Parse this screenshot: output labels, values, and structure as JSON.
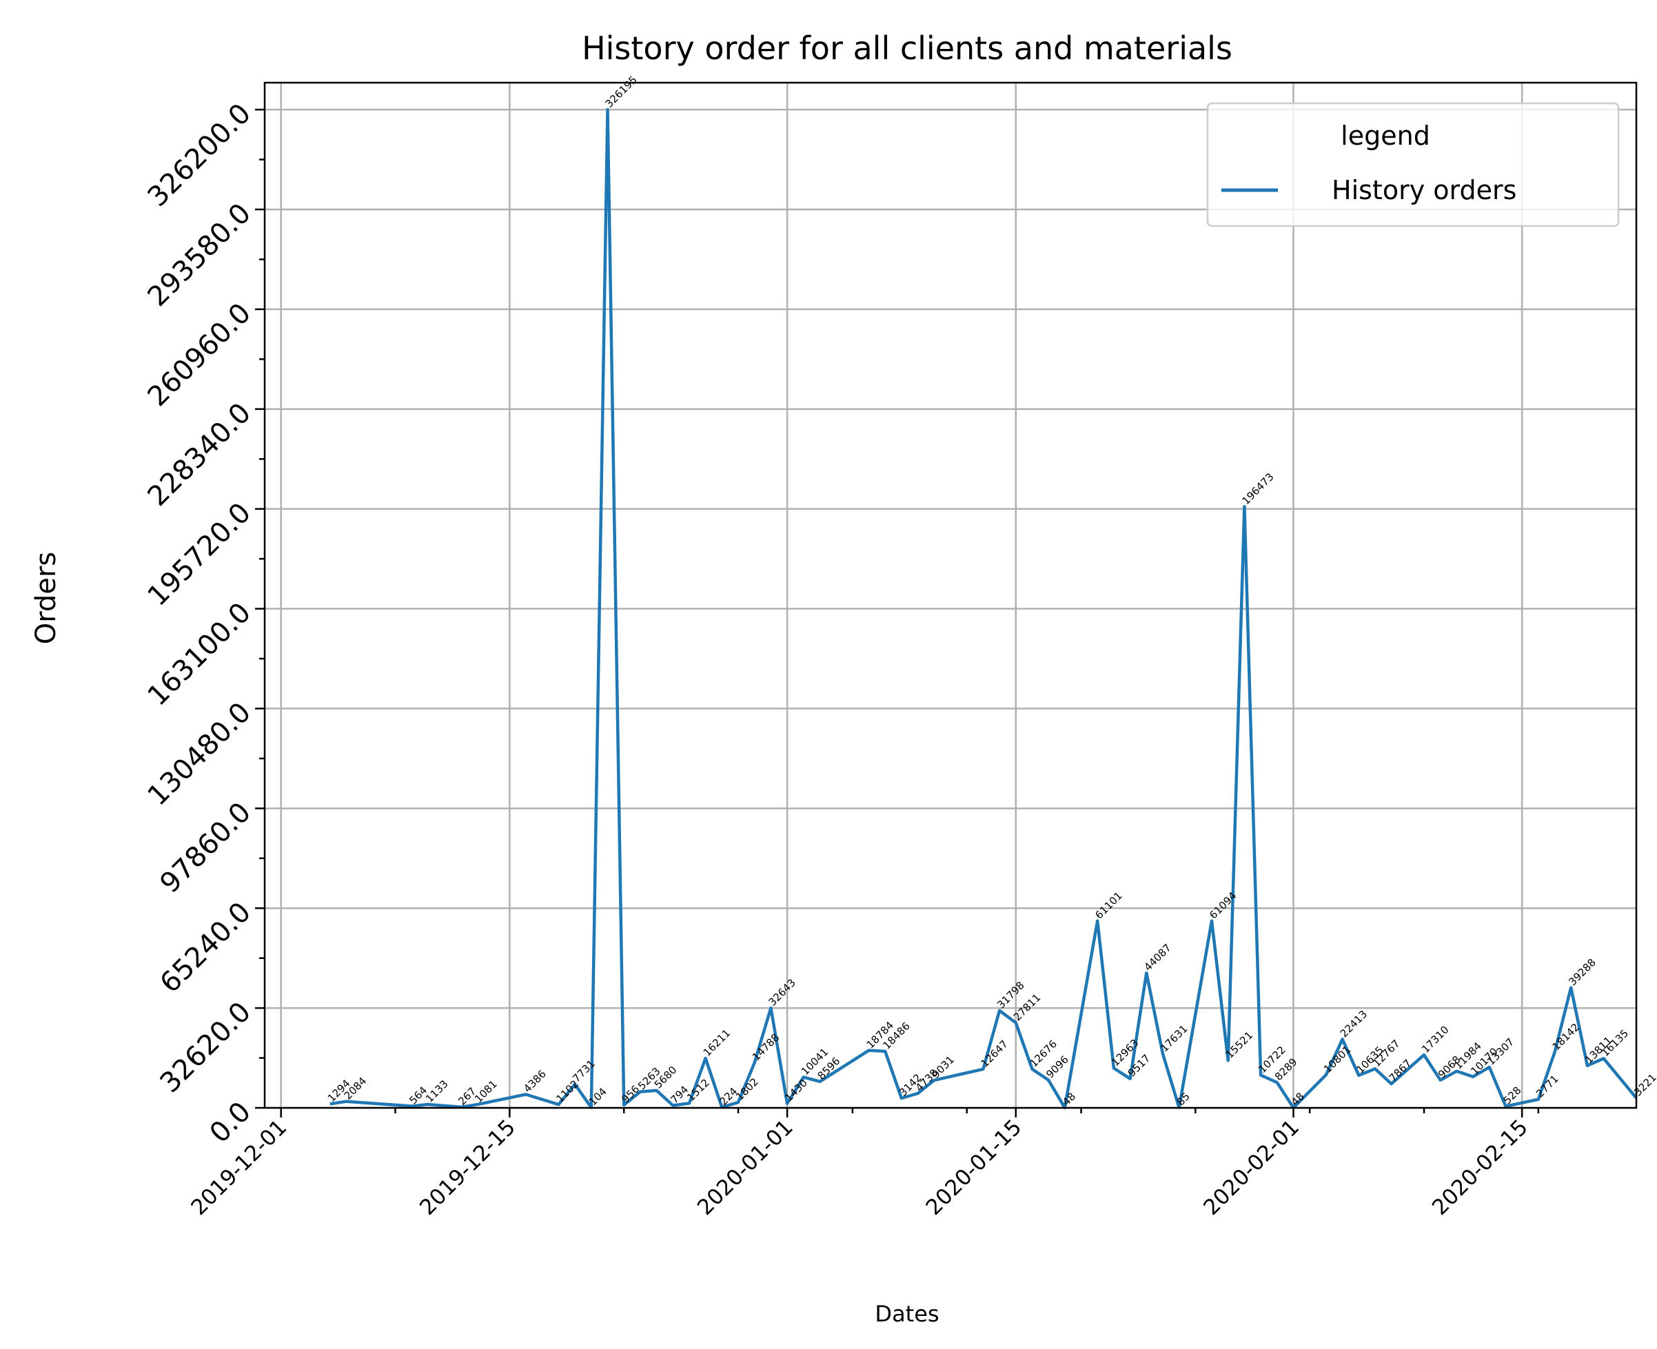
{
  "chart_data": {
    "type": "line",
    "title": "History order for all clients and materials",
    "xlabel": "Dates",
    "ylabel": "Orders",
    "grid": true,
    "legend": {
      "title": "legend",
      "placement": "upper right",
      "entries": [
        "History orders"
      ]
    },
    "colors": {
      "series": "#1f77b4",
      "grid": "#b0b0b0"
    },
    "xlim": [
      "2019-11-30",
      "2020-02-22"
    ],
    "ylim": [
      0,
      335000
    ],
    "y_ticks": [
      0,
      32620,
      65240,
      97860,
      130480,
      163100,
      195720,
      228340,
      260960,
      293580,
      326200
    ],
    "y_tick_labels": [
      "0.0",
      "32620.0",
      "65240.0",
      "97860.0",
      "130480.0",
      "163100.0",
      "195720.0",
      "228340.0",
      "260960.0",
      "293580.0",
      "326200.0"
    ],
    "x_ticks": [
      "2019-12-01",
      "2019-12-15",
      "2020-01-01",
      "2020-01-15",
      "2020-02-01",
      "2020-02-15"
    ],
    "series": [
      {
        "name": "History orders",
        "points": [
          {
            "x": "2019-12-04",
            "y": 1294
          },
          {
            "x": "2019-12-05",
            "y": 2084
          },
          {
            "x": "2019-12-09",
            "y": 564
          },
          {
            "x": "2019-12-10",
            "y": 1133
          },
          {
            "x": "2019-12-12",
            "y": 267
          },
          {
            "x": "2019-12-13",
            "y": 1081
          },
          {
            "x": "2019-12-16",
            "y": 4386
          },
          {
            "x": "2019-12-18",
            "y": 1102
          },
          {
            "x": "2019-12-19",
            "y": 7731
          },
          {
            "x": "2019-12-20",
            "y": 104
          },
          {
            "x": "2019-12-21",
            "y": 326195
          },
          {
            "x": "2019-12-22",
            "y": 956
          },
          {
            "x": "2019-12-23",
            "y": 5263
          },
          {
            "x": "2019-12-24",
            "y": 5680
          },
          {
            "x": "2019-12-25",
            "y": 794
          },
          {
            "x": "2019-12-26",
            "y": 1512
          },
          {
            "x": "2019-12-27",
            "y": 16211
          },
          {
            "x": "2019-12-28",
            "y": 224
          },
          {
            "x": "2019-12-29",
            "y": 1802
          },
          {
            "x": "2019-12-30",
            "y": 14788
          },
          {
            "x": "2019-12-31",
            "y": 32643
          },
          {
            "x": "2020-01-01",
            "y": 1430
          },
          {
            "x": "2020-01-02",
            "y": 10041
          },
          {
            "x": "2020-01-03",
            "y": 8596
          },
          {
            "x": "2020-01-06",
            "y": 18784
          },
          {
            "x": "2020-01-07",
            "y": 18486
          },
          {
            "x": "2020-01-08",
            "y": 3142
          },
          {
            "x": "2020-01-09",
            "y": 4738
          },
          {
            "x": "2020-01-10",
            "y": 9031
          },
          {
            "x": "2020-01-13",
            "y": 12647
          },
          {
            "x": "2020-01-14",
            "y": 31798
          },
          {
            "x": "2020-01-15",
            "y": 27811
          },
          {
            "x": "2020-01-16",
            "y": 12676
          },
          {
            "x": "2020-01-17",
            "y": 9096
          },
          {
            "x": "2020-01-18",
            "y": 48
          },
          {
            "x": "2020-01-20",
            "y": 61101
          },
          {
            "x": "2020-01-21",
            "y": 12963
          },
          {
            "x": "2020-01-22",
            "y": 9517
          },
          {
            "x": "2020-01-23",
            "y": 44087
          },
          {
            "x": "2020-01-24",
            "y": 17631
          },
          {
            "x": "2020-01-25",
            "y": 85
          },
          {
            "x": "2020-01-27",
            "y": 61094
          },
          {
            "x": "2020-01-28",
            "y": 15521
          },
          {
            "x": "2020-01-29",
            "y": 196473
          },
          {
            "x": "2020-01-30",
            "y": 10722
          },
          {
            "x": "2020-01-31",
            "y": 8289
          },
          {
            "x": "2020-02-01",
            "y": 48
          },
          {
            "x": "2020-02-03",
            "y": 10801
          },
          {
            "x": "2020-02-04",
            "y": 22413
          },
          {
            "x": "2020-02-05",
            "y": 10635
          },
          {
            "x": "2020-02-06",
            "y": 12767
          },
          {
            "x": "2020-02-07",
            "y": 7867
          },
          {
            "x": "2020-02-09",
            "y": 17310
          },
          {
            "x": "2020-02-10",
            "y": 9068
          },
          {
            "x": "2020-02-11",
            "y": 11984
          },
          {
            "x": "2020-02-12",
            "y": 10170
          },
          {
            "x": "2020-02-13",
            "y": 13307
          },
          {
            "x": "2020-02-14",
            "y": 528
          },
          {
            "x": "2020-02-16",
            "y": 2771
          },
          {
            "x": "2020-02-17",
            "y": 18142
          },
          {
            "x": "2020-02-18",
            "y": 39288
          },
          {
            "x": "2020-02-19",
            "y": 13811
          },
          {
            "x": "2020-02-20",
            "y": 16135
          },
          {
            "x": "2020-02-22",
            "y": 3221
          }
        ]
      }
    ]
  }
}
